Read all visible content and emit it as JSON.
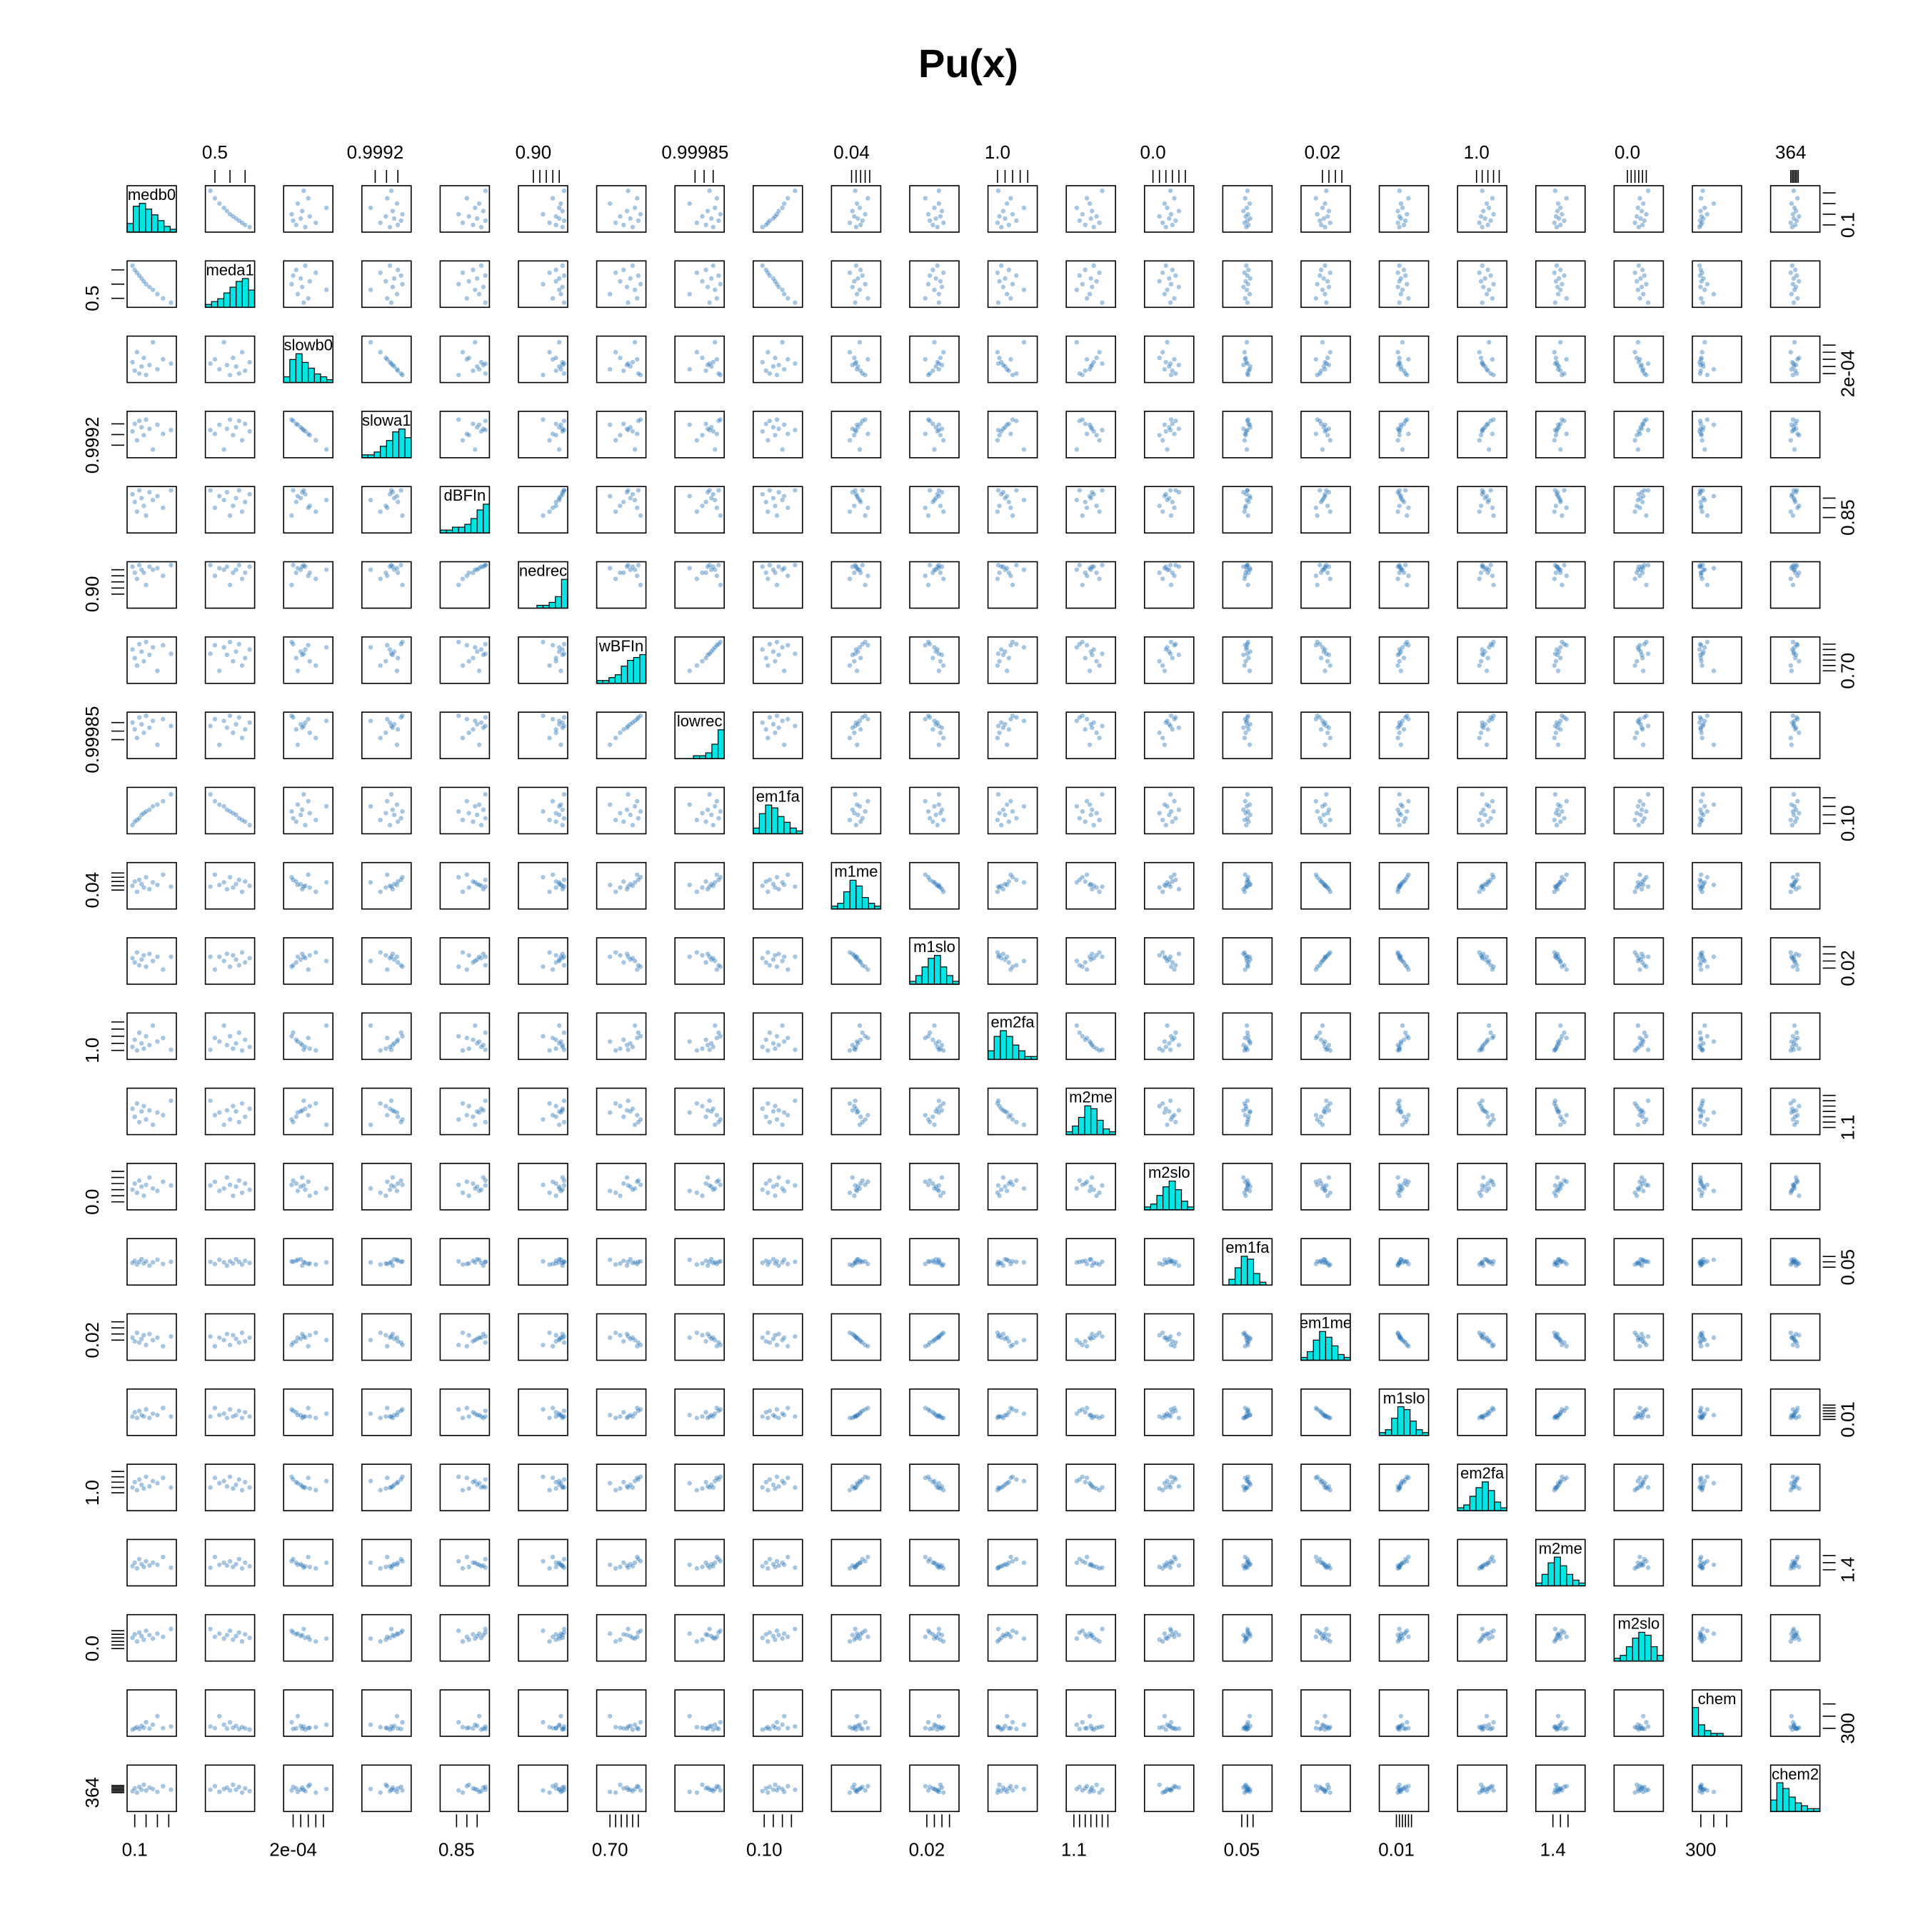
{
  "chart_data": {
    "type": "pairs",
    "title": "Pu(x)",
    "point_color": "#1f6fb4",
    "hist_color": "#00e5e5",
    "variables": [
      {
        "name": "medb0",
        "lim": [
          0.05,
          0.45
        ],
        "ticks": [
          0.1,
          0.2,
          0.3,
          0.4
        ],
        "values": [
          0.08,
          0.1,
          0.12,
          0.14,
          0.16,
          0.18,
          0.2,
          0.23,
          0.26,
          0.3,
          0.35,
          0.42
        ],
        "hist": [
          3,
          9,
          10,
          8,
          6,
          4,
          2,
          1
        ]
      },
      {
        "name": "meda1",
        "lim": [
          0.45,
          0.75
        ],
        "ticks": [
          0.5,
          0.6,
          0.7
        ],
        "values": [
          0.73,
          0.7,
          0.68,
          0.66,
          0.64,
          0.62,
          0.6,
          0.58,
          0.56,
          0.53,
          0.5,
          0.47
        ],
        "hist": [
          1,
          2,
          3,
          5,
          7,
          9,
          10,
          6
        ]
      },
      {
        "name": "slowb0",
        "lim": [
          0.00015,
          0.00045
        ],
        "ticks": [
          {
            "value": 0.0002,
            "label": "2e-04"
          },
          0.00025,
          0.0003,
          0.00035,
          0.0004
        ],
        "values": [
          0.00028,
          0.00022,
          0.00035,
          0.0002,
          0.00025,
          0.00031,
          0.00019,
          0.00026,
          0.00042,
          0.00023,
          0.0003,
          0.00027
        ],
        "hist": [
          2,
          8,
          10,
          7,
          5,
          3,
          2,
          1
        ]
      },
      {
        "name": "slowa1",
        "lim": [
          0.99915,
          0.99935
        ],
        "ticks": [
          0.9992,
          0.99925,
          0.9993
        ],
        "values": [
          0.999265,
          0.9993,
          0.999223,
          0.999314,
          0.999284,
          0.999247,
          0.99932,
          0.999277,
          0.99918,
          0.999296,
          0.999253,
          0.999271
        ],
        "hist": [
          1,
          1,
          2,
          4,
          6,
          9,
          10,
          7
        ]
      },
      {
        "name": "dBFIn",
        "lim": [
          0.78,
          1.0
        ],
        "ticks": [
          0.85,
          0.9,
          0.95
        ],
        "values": [
          0.97,
          0.93,
          0.88,
          0.99,
          0.95,
          0.91,
          0.86,
          0.98,
          0.94,
          0.96,
          0.9,
          0.99
        ],
        "hist": [
          1,
          1,
          2,
          2,
          3,
          5,
          8,
          10
        ]
      },
      {
        "name": "nedrec",
        "lim": [
          0.86,
          1.0
        ],
        "ticks": [
          {
            "value": 0.9,
            "label": "0.90"
          },
          0.92,
          0.94,
          0.96,
          0.98
        ],
        "values": [
          0.99,
          0.97,
          0.95,
          0.995,
          0.98,
          0.97,
          0.93,
          0.99,
          0.98,
          0.985,
          0.96,
          0.995
        ],
        "hist": [
          0,
          0,
          0,
          1,
          1,
          2,
          4,
          10
        ]
      },
      {
        "name": "wBFIn",
        "lim": [
          0.6,
          1.0
        ],
        "ticks": [
          {
            "value": 0.7,
            "label": "0.70"
          },
          0.75,
          0.8,
          0.85,
          0.9,
          0.95
        ],
        "values": [
          0.9,
          0.82,
          0.75,
          0.95,
          0.88,
          0.79,
          0.97,
          0.85,
          0.92,
          0.7,
          0.94,
          0.86
        ],
        "hist": [
          1,
          1,
          2,
          3,
          6,
          8,
          9,
          10
        ]
      },
      {
        "name": "lowrec",
        "lim": [
          0.99975,
          1.0
        ],
        "ticks": [
          0.99985,
          0.9999,
          0.99995
        ],
        "values": [
          0.99995,
          0.99991,
          0.99986,
          0.99998,
          0.99994,
          0.99989,
          0.99999,
          0.99992,
          0.99996,
          0.99982,
          0.99997,
          0.99993
        ],
        "hist": [
          0,
          0,
          0,
          1,
          1,
          2,
          5,
          10
        ]
      },
      {
        "name": "em1fa",
        "lim": [
          0.05,
          0.3
        ],
        "ticks": [
          {
            "value": 0.1,
            "label": "0.10"
          },
          0.15,
          0.2,
          0.25
        ],
        "values": [
          0.09,
          0.11,
          0.12,
          0.13,
          0.15,
          0.16,
          0.17,
          0.18,
          0.2,
          0.21,
          0.23,
          0.27
        ],
        "hist": [
          2,
          7,
          10,
          9,
          6,
          4,
          2,
          1
        ]
      },
      {
        "name": "m1me",
        "lim": [
          0.02,
          0.07
        ],
        "ticks": [
          0.04,
          0.045,
          0.05,
          0.055,
          0.06
        ],
        "values": [
          0.045,
          0.05,
          0.038,
          0.052,
          0.047,
          0.043,
          0.055,
          0.041,
          0.049,
          0.046,
          0.058,
          0.044
        ],
        "hist": [
          1,
          2,
          6,
          10,
          8,
          4,
          2,
          1
        ]
      },
      {
        "name": "m1slo",
        "lim": [
          0.01,
          0.04
        ],
        "ticks": [
          0.02,
          0.025,
          0.03,
          0.035
        ],
        "values": [
          0.027,
          0.024,
          0.031,
          0.022,
          0.026,
          0.029,
          0.021,
          0.03,
          0.025,
          0.028,
          0.019,
          0.028
        ],
        "hist": [
          1,
          3,
          6,
          9,
          10,
          6,
          3,
          1
        ]
      },
      {
        "name": "em2fa",
        "lim": [
          0.8,
          2.0
        ],
        "ticks": [
          {
            "value": 1,
            "label": "1.0"
          },
          1.2,
          1.4,
          1.6,
          1.8
        ],
        "values": [
          1.1,
          1.3,
          1.0,
          1.5,
          1.2,
          1.05,
          1.4,
          1.15,
          1.7,
          1.25,
          1.35,
          1.02
        ],
        "hist": [
          3,
          8,
          10,
          8,
          5,
          3,
          1,
          1
        ]
      },
      {
        "name": "m2me",
        "lim": [
          1.0,
          1.8
        ],
        "ticks": [
          1.1,
          1.2,
          1.3,
          1.4,
          1.5,
          1.6,
          1.7
        ],
        "values": [
          1.45,
          1.3,
          1.55,
          1.2,
          1.4,
          1.5,
          1.25,
          1.42,
          1.15,
          1.38,
          1.33,
          1.6
        ],
        "hist": [
          1,
          3,
          6,
          10,
          9,
          5,
          2,
          1
        ]
      },
      {
        "name": "m2slo",
        "lim": [
          -0.1,
          0.6
        ],
        "ticks": [
          {
            "value": 0,
            "label": "0.0"
          },
          0.1,
          0.2,
          0.3,
          0.4,
          0.5
        ],
        "values": [
          0.2,
          0.3,
          0.15,
          0.35,
          0.25,
          0.1,
          0.28,
          0.4,
          0.22,
          0.18,
          0.33,
          0.27
        ],
        "hist": [
          1,
          2,
          5,
          8,
          10,
          7,
          3,
          1
        ]
      },
      {
        "name": "em1fa",
        "lim": [
          0.02,
          0.1
        ],
        "ticks": [
          0.05,
          0.06,
          0.07
        ],
        "values": [
          0.058,
          0.062,
          0.055,
          0.06,
          0.065,
          0.057,
          0.061,
          0.053,
          0.059,
          0.064,
          0.056,
          0.06
        ],
        "hist": [
          0,
          2,
          6,
          10,
          9,
          4,
          1,
          0
        ]
      },
      {
        "name": "em1me",
        "lim": [
          0.005,
          0.04
        ],
        "ticks": [
          0.02,
          0.025,
          0.03,
          0.035
        ],
        "values": [
          0.022,
          0.019,
          0.026,
          0.018,
          0.021,
          0.024,
          0.016,
          0.025,
          0.02,
          0.022,
          0.015,
          0.023
        ],
        "hist": [
          1,
          3,
          7,
          10,
          8,
          5,
          2,
          1
        ]
      },
      {
        "name": "m1slo",
        "lim": [
          0.0,
          0.03
        ],
        "ticks": [
          0.01,
          0.012,
          0.014,
          0.016,
          0.018,
          0.02
        ],
        "values": [
          0.012,
          0.015,
          0.011,
          0.016,
          0.013,
          0.012,
          0.017,
          0.011,
          0.014,
          0.013,
          0.018,
          0.012
        ],
        "hist": [
          1,
          2,
          6,
          10,
          9,
          5,
          2,
          1
        ]
      },
      {
        "name": "em2fa",
        "lim": [
          0.7,
          1.5
        ],
        "ticks": [
          {
            "value": 1,
            "label": "1.0"
          },
          1.1,
          1.2,
          1.3,
          1.4
        ],
        "values": [
          1.1,
          1.2,
          1.05,
          1.25,
          1.15,
          1.08,
          1.3,
          1.12,
          1.22,
          1.18,
          1.28,
          1.1
        ],
        "hist": [
          1,
          2,
          5,
          8,
          10,
          7,
          3,
          1
        ]
      },
      {
        "name": "m2me",
        "lim": [
          1.2,
          1.8
        ],
        "ticks": [
          1.4,
          1.5,
          1.6
        ],
        "values": [
          1.45,
          1.5,
          1.42,
          1.55,
          1.48,
          1.44,
          1.52,
          1.46,
          1.5,
          1.47,
          1.58,
          1.43
        ],
        "hist": [
          1,
          4,
          8,
          10,
          7,
          4,
          2,
          1
        ]
      },
      {
        "name": "m2slo",
        "lim": [
          -0.3,
          0.9
        ],
        "ticks": [
          {
            "value": 0,
            "label": "0.0"
          },
          0.1,
          0.2,
          0.3,
          0.4,
          0.5
        ],
        "values": [
          0.3,
          0.4,
          0.2,
          0.45,
          0.35,
          0.25,
          0.5,
          0.38,
          0.28,
          0.42,
          0.33,
          0.55
        ],
        "hist": [
          1,
          2,
          5,
          8,
          10,
          9,
          5,
          2
        ]
      },
      {
        "name": "chem",
        "lim": [
          250,
          600
        ],
        "ticks": [
          300,
          400,
          500
        ],
        "values": [
          290,
          300,
          310,
          295,
          320,
          305,
          350,
          298,
          330,
          400,
          302,
          315
        ],
        "hist": [
          10,
          4,
          2,
          1,
          1,
          0,
          0,
          0
        ]
      },
      {
        "name": "chem2",
        "lim": [
          340,
          400
        ],
        "ticks": [
          364,
          366,
          368,
          370,
          372,
          374
        ],
        "values": [
          366,
          370,
          364,
          372,
          368,
          375,
          367,
          371,
          369,
          365,
          373,
          368
        ],
        "hist": [
          4,
          10,
          8,
          5,
          3,
          2,
          1,
          1
        ]
      }
    ]
  }
}
